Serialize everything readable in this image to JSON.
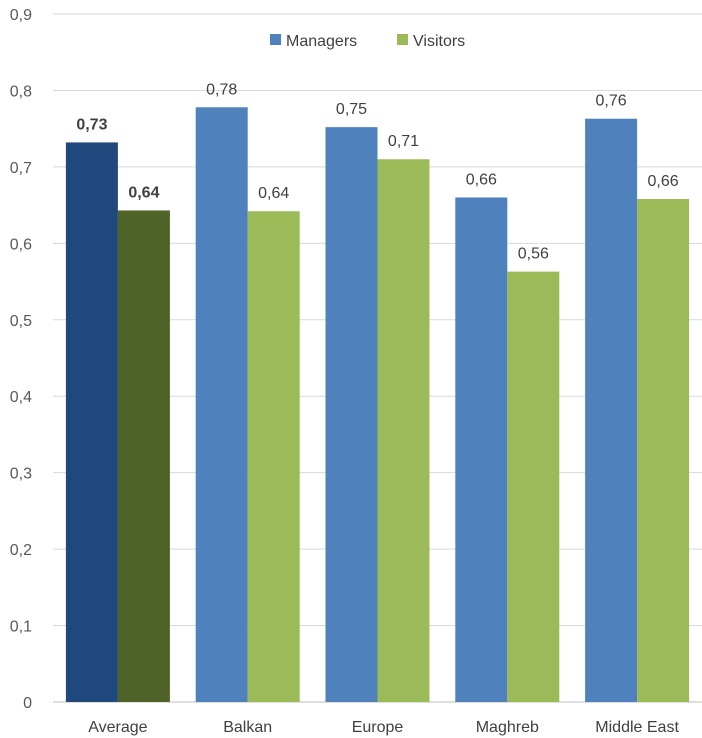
{
  "chart_data": {
    "type": "bar",
    "title": "",
    "xlabel": "",
    "ylabel": "",
    "ylim": [
      0,
      0.9
    ],
    "y_ticks": [
      "0",
      "0,1",
      "0,2",
      "0,3",
      "0,4",
      "0,5",
      "0,6",
      "0,7",
      "0,8",
      "0,9"
    ],
    "categories": [
      "Average",
      "Balkan",
      "Europe",
      "Maghreb",
      "Middle East"
    ],
    "series": [
      {
        "name": "Managers",
        "values": [
          0.732,
          0.778,
          0.752,
          0.66,
          0.763
        ],
        "labels": [
          "0,73",
          "0,78",
          "0,75",
          "0,66",
          "0,76"
        ],
        "color": "#4F81BD",
        "highlight_color": "#1F497D"
      },
      {
        "name": "Visitors",
        "values": [
          0.643,
          0.642,
          0.71,
          0.563,
          0.658
        ],
        "labels": [
          "0,64",
          "0,64",
          "0,71",
          "0,56",
          "0,66"
        ],
        "color": "#9BBB59",
        "highlight_color": "#4F6228"
      }
    ],
    "highlight_category_index": 0,
    "grid": true,
    "gridline_color": "#D9D9D9",
    "legend_position": "top-center"
  }
}
